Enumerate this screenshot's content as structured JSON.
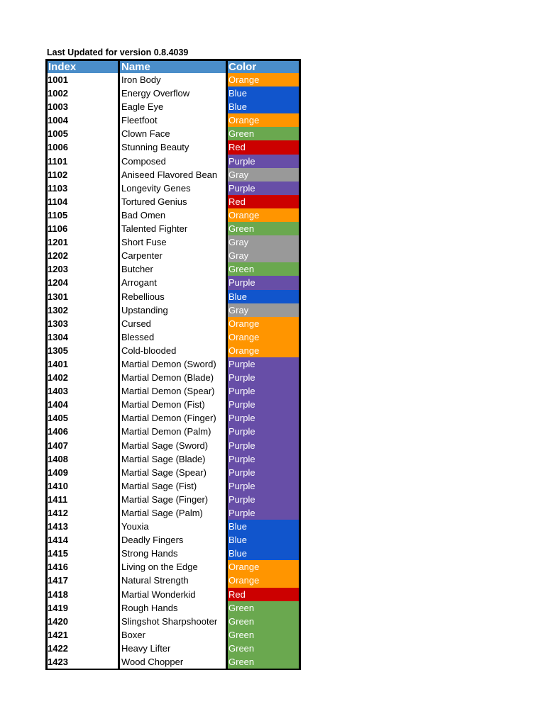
{
  "title": "Last Updated for version 0.8.4039",
  "headers": {
    "index": "Index",
    "name": "Name",
    "color": "Color"
  },
  "palette": {
    "Orange": "#ff9500",
    "Blue": "#1155cc",
    "Green": "#6aa84f",
    "Red": "#cc0000",
    "Purple": "#674ea7",
    "Gray": "#999999"
  },
  "rows": [
    {
      "index": "1001",
      "name": "Iron Body",
      "color": "Orange"
    },
    {
      "index": "1002",
      "name": "Energy Overflow",
      "color": "Blue"
    },
    {
      "index": "1003",
      "name": "Eagle Eye",
      "color": "Blue"
    },
    {
      "index": "1004",
      "name": "Fleetfoot",
      "color": "Orange"
    },
    {
      "index": "1005",
      "name": "Clown Face",
      "color": "Green"
    },
    {
      "index": "1006",
      "name": "Stunning Beauty",
      "color": "Red"
    },
    {
      "index": "1101",
      "name": "Composed",
      "color": "Purple"
    },
    {
      "index": "1102",
      "name": "Aniseed Flavored Bean",
      "color": "Gray"
    },
    {
      "index": "1103",
      "name": "Longevity Genes",
      "color": "Purple"
    },
    {
      "index": "1104",
      "name": "Tortured Genius",
      "color": "Red"
    },
    {
      "index": "1105",
      "name": "Bad Omen",
      "color": "Orange"
    },
    {
      "index": "1106",
      "name": "Talented Fighter",
      "color": "Green"
    },
    {
      "index": "1201",
      "name": "Short Fuse",
      "color": "Gray"
    },
    {
      "index": "1202",
      "name": "Carpenter",
      "color": "Gray"
    },
    {
      "index": "1203",
      "name": "Butcher",
      "color": "Green"
    },
    {
      "index": "1204",
      "name": "Arrogant",
      "color": "Purple"
    },
    {
      "index": "1301",
      "name": "Rebellious",
      "color": "Blue"
    },
    {
      "index": "1302",
      "name": "Upstanding",
      "color": "Gray"
    },
    {
      "index": "1303",
      "name": "Cursed",
      "color": "Orange"
    },
    {
      "index": "1304",
      "name": "Blessed",
      "color": "Orange"
    },
    {
      "index": "1305",
      "name": "Cold-blooded",
      "color": "Orange"
    },
    {
      "index": "1401",
      "name": "Martial Demon (Sword)",
      "color": "Purple"
    },
    {
      "index": "1402",
      "name": "Martial Demon (Blade)",
      "color": "Purple"
    },
    {
      "index": "1403",
      "name": "Martial Demon (Spear)",
      "color": "Purple"
    },
    {
      "index": "1404",
      "name": "Martial Demon (Fist)",
      "color": "Purple"
    },
    {
      "index": "1405",
      "name": "Martial Demon (Finger)",
      "color": "Purple"
    },
    {
      "index": "1406",
      "name": "Martial Demon (Palm)",
      "color": "Purple"
    },
    {
      "index": "1407",
      "name": "Martial Sage (Sword)",
      "color": "Purple"
    },
    {
      "index": "1408",
      "name": "Martial Sage (Blade)",
      "color": "Purple"
    },
    {
      "index": "1409",
      "name": "Martial Sage (Spear)",
      "color": "Purple"
    },
    {
      "index": "1410",
      "name": "Martial Sage (Fist)",
      "color": "Purple"
    },
    {
      "index": "1411",
      "name": "Martial Sage (Finger)",
      "color": "Purple"
    },
    {
      "index": "1412",
      "name": "Martial Sage (Palm)",
      "color": "Purple"
    },
    {
      "index": "1413",
      "name": "Youxia",
      "color": "Blue"
    },
    {
      "index": "1414",
      "name": "Deadly Fingers",
      "color": "Blue"
    },
    {
      "index": "1415",
      "name": "Strong Hands",
      "color": "Blue"
    },
    {
      "index": "1416",
      "name": "Living on the Edge",
      "color": "Orange"
    },
    {
      "index": "1417",
      "name": "Natural Strength",
      "color": "Orange"
    },
    {
      "index": "1418",
      "name": "Martial Wonderkid",
      "color": "Red"
    },
    {
      "index": "1419",
      "name": "Rough Hands",
      "color": "Green"
    },
    {
      "index": "1420",
      "name": "Slingshot Sharpshooter",
      "color": "Green"
    },
    {
      "index": "1421",
      "name": "Boxer",
      "color": "Green"
    },
    {
      "index": "1422",
      "name": "Heavy Lifter",
      "color": "Green"
    },
    {
      "index": "1423",
      "name": "Wood Chopper",
      "color": "Green"
    }
  ]
}
